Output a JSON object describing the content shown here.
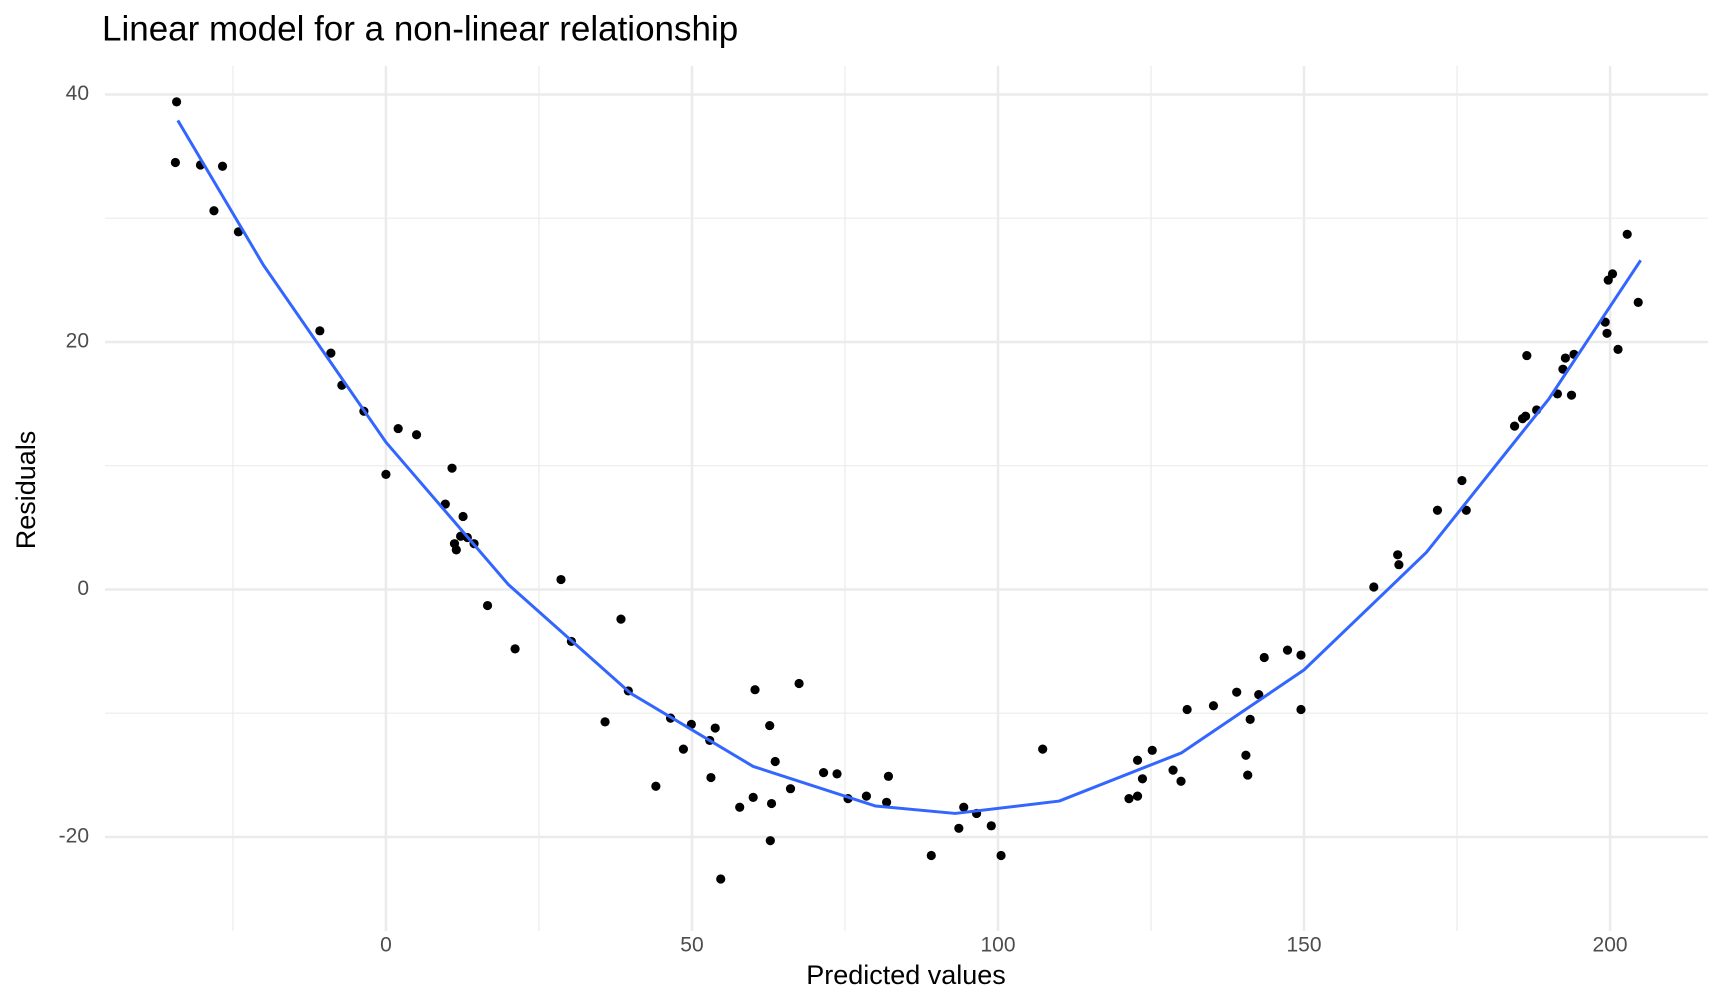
{
  "chart_data": {
    "type": "scatter",
    "title": "Linear model for a non-linear relationship",
    "x_label": "Predicted values",
    "y_label": "Residuals",
    "xlim": [
      -45.9,
      216
    ],
    "ylim": [
      -27.6,
      42.3
    ],
    "xticks": [
      0,
      50,
      100,
      150,
      200
    ],
    "yticks": [
      -20,
      0,
      20,
      40
    ],
    "x_minor_ticks": [
      -25,
      25,
      75,
      125,
      175
    ],
    "y_minor_ticks": [
      -10,
      10,
      30
    ],
    "grid": true,
    "color": "#000000",
    "x": [
      -34.2,
      -34.4,
      -30.3,
      -26.7,
      -28.1,
      -24.1,
      -10.8,
      -9.0,
      -7.2,
      -3.6,
      2.0,
      5.0,
      0,
      10.8,
      9.7,
      12.6,
      11.2,
      11.5,
      12.2,
      13.3,
      14.4,
      16.6,
      21.1,
      28.6,
      30.3,
      38.4,
      39.6,
      35.8,
      46.5,
      49.9,
      48.6,
      52.9,
      53.8,
      53.1,
      44.1,
      54.7,
      57.8,
      60.0,
      60.3,
      62.7,
      63.6,
      63.0,
      62.8,
      66.1,
      67.5,
      71.5,
      73.7,
      75.5,
      78.5,
      82.1,
      81.8,
      89.1,
      93.6,
      94.4,
      96.5,
      98.9,
      100.5,
      107.3,
      121.4,
      122.8,
      122.8,
      123.6,
      125.2,
      128.6,
      129.9,
      130.9,
      135.2,
      139.0,
      140.5,
      140.8,
      141.2,
      142.6,
      143.5,
      147.3,
      149.5,
      149.5,
      161.4,
      165.3,
      165.5,
      171.8,
      175.8,
      176.5,
      184.4,
      185.7,
      186.2,
      186.4,
      188.0,
      191.4,
      192.3,
      192.7,
      193.7,
      194.1,
      199.2,
      199.5,
      199.7,
      200.4,
      201.3,
      202.8,
      204.6
    ],
    "values": [
      39.4,
      34.5,
      34.3,
      34.2,
      30.6,
      28.9,
      20.9,
      19.1,
      16.5,
      14.4,
      13.0,
      12.5,
      9.3,
      9.8,
      6.9,
      5.9,
      3.7,
      3.2,
      4.3,
      4.2,
      3.7,
      -1.3,
      -4.8,
      0.8,
      -4.2,
      -2.4,
      -8.2,
      -10.7,
      -10.4,
      -10.9,
      -12.9,
      -12.2,
      -11.2,
      -15.2,
      -15.9,
      -23.4,
      -17.6,
      -16.8,
      -8.1,
      -11.0,
      -13.9,
      -17.3,
      -20.3,
      -16.1,
      -7.6,
      -14.8,
      -14.9,
      -16.9,
      -16.7,
      -15.1,
      -17.2,
      -21.5,
      -19.3,
      -17.6,
      -18.1,
      -19.1,
      -21.5,
      -12.9,
      -16.9,
      -16.7,
      -13.8,
      -15.3,
      -13.0,
      -14.6,
      -15.5,
      -9.7,
      -9.4,
      -8.3,
      -13.4,
      -15.0,
      -10.5,
      -8.5,
      -5.5,
      -4.9,
      -5.3,
      -9.7,
      0.2,
      2.8,
      2.0,
      6.4,
      8.8,
      6.4,
      13.2,
      13.8,
      14.0,
      18.9,
      14.5,
      15.8,
      17.8,
      18.7,
      15.7,
      19.0,
      21.6,
      20.7,
      25.0,
      25.5,
      19.4,
      28.7,
      23.2
    ],
    "fit": {
      "color": "#3366ff",
      "x": [
        -34,
        -20,
        0,
        20,
        40,
        60,
        80,
        93,
        110,
        130,
        150,
        170,
        190,
        205
      ],
      "values": [
        37.9,
        26.2,
        11.9,
        0.4,
        -8.4,
        -14.3,
        -17.5,
        -18.1,
        -17.1,
        -13.2,
        -6.5,
        3.0,
        15.4,
        26.6
      ]
    }
  }
}
